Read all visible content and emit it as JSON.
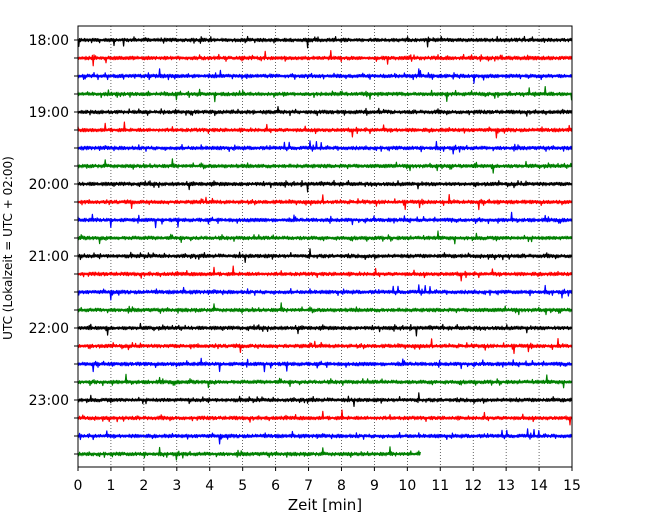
{
  "chart_data": {
    "type": "line",
    "subtype": "helicorder",
    "xlabel": "Zeit  [min]",
    "ylabel": "UTC (Lokalzeit = UTC + 02:00)",
    "xlim": [
      0,
      15
    ],
    "x_ticks": [
      0,
      1,
      2,
      3,
      4,
      5,
      6,
      7,
      8,
      9,
      10,
      11,
      12,
      13,
      14,
      15
    ],
    "y_tick_labels": [
      "18:00",
      "19:00",
      "20:00",
      "21:00",
      "22:00",
      "23:00"
    ],
    "grid": "vertical dotted lines at each minute",
    "line_colors": [
      "#000000",
      "#ff0000",
      "#0000ff",
      "#008000"
    ],
    "rows_start": [
      "18:00",
      "18:15",
      "18:30",
      "18:45",
      "19:00",
      "19:15",
      "19:30",
      "19:45",
      "20:00",
      "20:15",
      "20:30",
      "20:45",
      "21:00",
      "21:15",
      "21:30",
      "21:45",
      "22:00",
      "22:15",
      "22:30",
      "22:45",
      "23:00",
      "23:15",
      "23:30",
      "23:45"
    ],
    "last_row_end_min": 10.4
  }
}
